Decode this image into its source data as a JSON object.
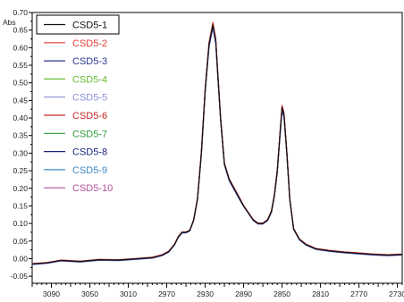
{
  "chart_data": {
    "type": "line",
    "title": "",
    "xlabel": "",
    "ylabel": "Abs",
    "xlim": [
      3110,
      2725
    ],
    "ylim": [
      -0.07,
      0.7
    ],
    "x_reversed": true,
    "y_ticks": [
      -0.05,
      0.0,
      0.05,
      0.1,
      0.15,
      0.2,
      0.25,
      0.3,
      0.35,
      0.4,
      0.45,
      0.5,
      0.55,
      0.6,
      0.65,
      0.7
    ],
    "y_tick_labels": [
      "-0.05",
      "0.00",
      "0.05",
      "0.10",
      "0.15",
      "0.20",
      "0.25",
      "0.30",
      "0.35",
      "0.40",
      "0.45",
      "0.50",
      "0.55",
      "0.60",
      "0.65",
      "0.70"
    ],
    "x_ticks": [
      3090,
      3050,
      3010,
      2970,
      2930,
      2890,
      2850,
      2810,
      2770,
      2730
    ],
    "x_tick_labels": [
      "3090",
      "3050",
      "3010",
      "2970",
      "2930",
      "2890",
      "2850",
      "2810",
      "2770",
      "2730"
    ],
    "legend_position": "top-left",
    "grid": false,
    "x": [
      3110,
      3095,
      3080,
      3060,
      3040,
      3020,
      3000,
      2985,
      2975,
      2968,
      2962,
      2958,
      2954,
      2950,
      2946,
      2942,
      2938,
      2934,
      2930,
      2926,
      2922,
      2919,
      2917,
      2914,
      2910,
      2905,
      2900,
      2895,
      2890,
      2885,
      2880,
      2875,
      2870,
      2865,
      2861,
      2858,
      2855,
      2852,
      2850,
      2848,
      2845,
      2842,
      2838,
      2832,
      2825,
      2815,
      2800,
      2785,
      2770,
      2755,
      2740,
      2725
    ],
    "series": [
      {
        "name": "CSD5-1",
        "color": "#111111",
        "values": [
          -0.015,
          -0.012,
          -0.005,
          -0.008,
          -0.003,
          -0.004,
          0.0,
          0.003,
          0.01,
          0.02,
          0.04,
          0.062,
          0.075,
          0.075,
          0.08,
          0.11,
          0.17,
          0.3,
          0.48,
          0.61,
          0.665,
          0.62,
          0.53,
          0.4,
          0.27,
          0.225,
          0.2,
          0.175,
          0.15,
          0.13,
          0.11,
          0.1,
          0.1,
          0.11,
          0.135,
          0.18,
          0.25,
          0.36,
          0.43,
          0.41,
          0.3,
          0.17,
          0.085,
          0.055,
          0.04,
          0.028,
          0.022,
          0.018,
          0.015,
          0.012,
          0.01,
          0.012
        ]
      },
      {
        "name": "CSD5-2",
        "color": "#e53935",
        "values": [
          -0.014,
          -0.011,
          -0.004,
          -0.007,
          -0.002,
          -0.003,
          0.001,
          0.004,
          0.011,
          0.021,
          0.041,
          0.063,
          0.076,
          0.076,
          0.081,
          0.111,
          0.172,
          0.303,
          0.484,
          0.615,
          0.672,
          0.626,
          0.534,
          0.403,
          0.272,
          0.227,
          0.202,
          0.177,
          0.151,
          0.131,
          0.111,
          0.101,
          0.101,
          0.111,
          0.137,
          0.182,
          0.253,
          0.364,
          0.436,
          0.415,
          0.303,
          0.172,
          0.086,
          0.056,
          0.041,
          0.029,
          0.023,
          0.019,
          0.016,
          0.013,
          0.011,
          0.013
        ]
      },
      {
        "name": "CSD5-3",
        "color": "#283593",
        "values": [
          -0.016,
          -0.013,
          -0.006,
          -0.009,
          -0.004,
          -0.005,
          -0.001,
          0.002,
          0.009,
          0.019,
          0.039,
          0.061,
          0.074,
          0.074,
          0.079,
          0.109,
          0.168,
          0.297,
          0.476,
          0.605,
          0.66,
          0.615,
          0.526,
          0.397,
          0.268,
          0.223,
          0.198,
          0.173,
          0.149,
          0.129,
          0.109,
          0.099,
          0.099,
          0.109,
          0.133,
          0.178,
          0.247,
          0.356,
          0.425,
          0.406,
          0.297,
          0.168,
          0.084,
          0.054,
          0.039,
          0.027,
          0.021,
          0.017,
          0.014,
          0.011,
          0.009,
          0.011
        ]
      },
      {
        "name": "CSD5-4",
        "color": "#66bb33",
        "values": [
          -0.015,
          -0.012,
          -0.005,
          -0.008,
          -0.003,
          -0.004,
          0.0,
          0.003,
          0.01,
          0.02,
          0.04,
          0.062,
          0.075,
          0.075,
          0.08,
          0.11,
          0.17,
          0.3,
          0.48,
          0.61,
          0.664,
          0.619,
          0.529,
          0.4,
          0.27,
          0.225,
          0.2,
          0.175,
          0.15,
          0.13,
          0.11,
          0.1,
          0.1,
          0.11,
          0.135,
          0.18,
          0.25,
          0.36,
          0.429,
          0.409,
          0.3,
          0.17,
          0.085,
          0.055,
          0.04,
          0.028,
          0.022,
          0.018,
          0.015,
          0.012,
          0.01,
          0.012
        ]
      },
      {
        "name": "CSD5-5",
        "color": "#8a8fd6",
        "values": [
          -0.017,
          -0.014,
          -0.007,
          -0.01,
          -0.005,
          -0.006,
          -0.002,
          0.001,
          0.008,
          0.018,
          0.038,
          0.06,
          0.073,
          0.073,
          0.078,
          0.108,
          0.166,
          0.294,
          0.472,
          0.6,
          0.655,
          0.61,
          0.522,
          0.394,
          0.266,
          0.221,
          0.196,
          0.171,
          0.148,
          0.128,
          0.108,
          0.098,
          0.098,
          0.108,
          0.131,
          0.176,
          0.244,
          0.352,
          0.42,
          0.401,
          0.294,
          0.166,
          0.083,
          0.053,
          0.038,
          0.026,
          0.02,
          0.016,
          0.013,
          0.01,
          0.008,
          0.01
        ]
      },
      {
        "name": "CSD5-6",
        "color": "#c62828",
        "values": [
          -0.015,
          -0.012,
          -0.005,
          -0.008,
          -0.003,
          -0.004,
          0.0,
          0.003,
          0.01,
          0.02,
          0.04,
          0.062,
          0.075,
          0.075,
          0.08,
          0.11,
          0.17,
          0.301,
          0.482,
          0.612,
          0.668,
          0.622,
          0.532,
          0.402,
          0.271,
          0.226,
          0.201,
          0.176,
          0.151,
          0.131,
          0.111,
          0.101,
          0.101,
          0.111,
          0.136,
          0.181,
          0.252,
          0.362,
          0.433,
          0.412,
          0.301,
          0.171,
          0.086,
          0.056,
          0.041,
          0.029,
          0.023,
          0.019,
          0.016,
          0.013,
          0.011,
          0.013
        ]
      },
      {
        "name": "CSD5-7",
        "color": "#2e9e3a",
        "values": [
          -0.015,
          -0.012,
          -0.005,
          -0.008,
          -0.003,
          -0.004,
          0.0,
          0.003,
          0.01,
          0.02,
          0.04,
          0.062,
          0.075,
          0.075,
          0.08,
          0.11,
          0.17,
          0.299,
          0.479,
          0.609,
          0.663,
          0.618,
          0.528,
          0.399,
          0.269,
          0.224,
          0.199,
          0.174,
          0.15,
          0.13,
          0.11,
          0.1,
          0.1,
          0.11,
          0.134,
          0.179,
          0.249,
          0.359,
          0.428,
          0.408,
          0.299,
          0.169,
          0.085,
          0.055,
          0.04,
          0.028,
          0.022,
          0.018,
          0.015,
          0.012,
          0.01,
          0.012
        ]
      },
      {
        "name": "CSD5-8",
        "color": "#1a237e",
        "values": [
          -0.016,
          -0.013,
          -0.006,
          -0.009,
          -0.004,
          -0.005,
          -0.001,
          0.002,
          0.009,
          0.019,
          0.039,
          0.061,
          0.074,
          0.074,
          0.079,
          0.109,
          0.169,
          0.298,
          0.478,
          0.607,
          0.662,
          0.617,
          0.527,
          0.398,
          0.269,
          0.224,
          0.199,
          0.174,
          0.149,
          0.129,
          0.109,
          0.099,
          0.099,
          0.109,
          0.134,
          0.179,
          0.248,
          0.358,
          0.427,
          0.407,
          0.298,
          0.169,
          0.084,
          0.054,
          0.039,
          0.027,
          0.021,
          0.017,
          0.014,
          0.011,
          0.009,
          0.011
        ]
      },
      {
        "name": "CSD5-9",
        "color": "#3b88c4",
        "values": [
          -0.016,
          -0.013,
          -0.006,
          -0.009,
          -0.004,
          -0.005,
          -0.001,
          0.002,
          0.009,
          0.019,
          0.039,
          0.061,
          0.074,
          0.074,
          0.079,
          0.109,
          0.168,
          0.297,
          0.477,
          0.606,
          0.661,
          0.616,
          0.527,
          0.398,
          0.268,
          0.223,
          0.198,
          0.173,
          0.149,
          0.129,
          0.109,
          0.099,
          0.099,
          0.109,
          0.133,
          0.178,
          0.248,
          0.357,
          0.426,
          0.407,
          0.297,
          0.168,
          0.084,
          0.054,
          0.039,
          0.027,
          0.021,
          0.017,
          0.014,
          0.011,
          0.009,
          0.011
        ]
      },
      {
        "name": "CSD5-10",
        "color": "#b0509a",
        "values": [
          -0.015,
          -0.012,
          -0.005,
          -0.008,
          -0.003,
          -0.004,
          0.0,
          0.003,
          0.01,
          0.02,
          0.04,
          0.062,
          0.075,
          0.075,
          0.08,
          0.11,
          0.17,
          0.3,
          0.481,
          0.611,
          0.666,
          0.621,
          0.531,
          0.401,
          0.27,
          0.225,
          0.2,
          0.175,
          0.15,
          0.13,
          0.11,
          0.1,
          0.1,
          0.11,
          0.135,
          0.18,
          0.251,
          0.361,
          0.431,
          0.411,
          0.3,
          0.17,
          0.085,
          0.055,
          0.04,
          0.028,
          0.022,
          0.018,
          0.015,
          0.012,
          0.01,
          0.012
        ]
      }
    ]
  }
}
